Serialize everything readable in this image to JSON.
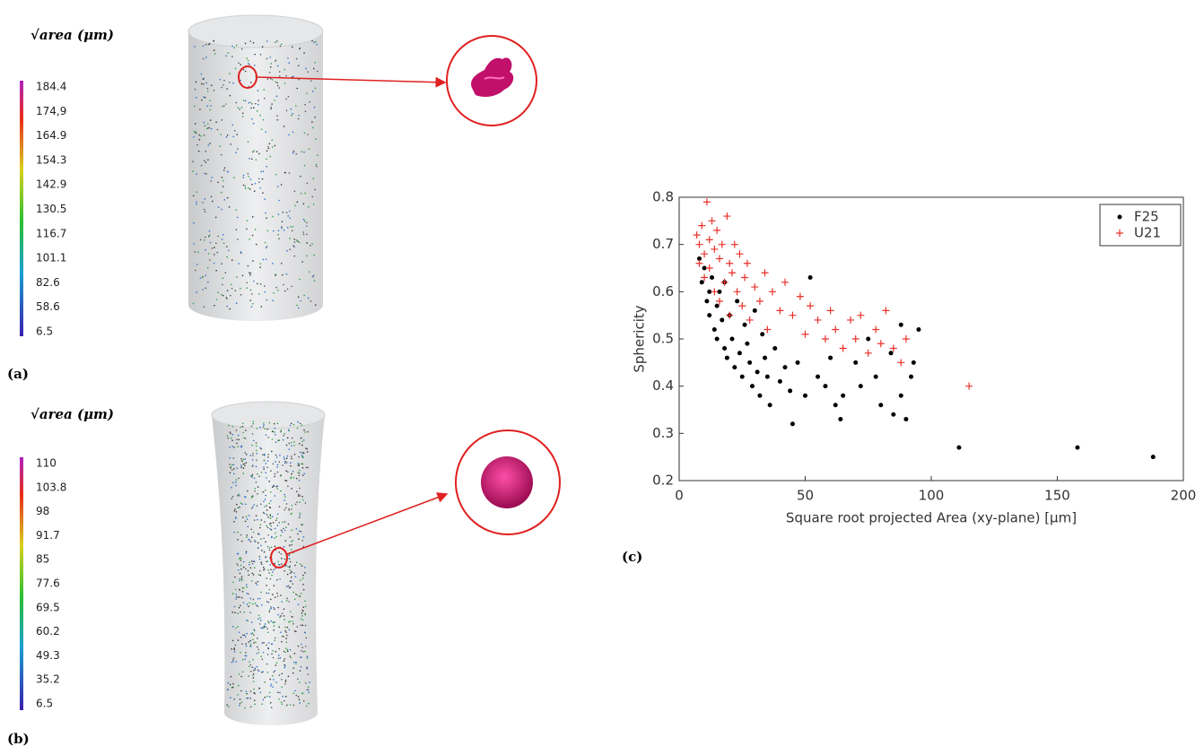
{
  "panels": [
    {
      "label": "(a)",
      "colorbar_title": "√area (μm)",
      "colorbar_labels": [
        "184.4",
        "174,9",
        "164.9",
        "154.3",
        "142.9",
        "130.5",
        "116.7",
        "101.1",
        "82.6",
        "58.6",
        "6.5"
      ]
    },
    {
      "label": "(b)",
      "colorbar_title": "√area (μm)",
      "colorbar_labels": [
        "110",
        "103.8",
        "98",
        "91.7",
        "85",
        "77.6",
        "69.5",
        "60.2",
        "49.3",
        "35.2",
        "6.5"
      ]
    }
  ],
  "chart_data": {
    "type": "scatter",
    "panel_label": "(c)",
    "xlabel": "Square root projected Area (xy-plane) [μm]",
    "ylabel": "Sphericity",
    "xlim": [
      0,
      200
    ],
    "xticks": [
      0,
      50,
      100,
      150,
      200
    ],
    "ylim": [
      0.2,
      0.8
    ],
    "yticks": [
      0.2,
      0.3,
      0.4,
      0.5,
      0.6,
      0.7,
      0.8
    ],
    "legend": "northeast",
    "series": [
      {
        "name": "F25",
        "color": "#000000",
        "marker": "dot",
        "x": [
          8,
          9,
          10,
          11,
          12,
          12,
          13,
          14,
          15,
          15,
          16,
          17,
          18,
          18,
          19,
          20,
          21,
          22,
          23,
          24,
          25,
          26,
          27,
          28,
          29,
          30,
          31,
          32,
          33,
          34,
          35,
          36,
          38,
          40,
          42,
          44,
          45,
          47,
          50,
          52,
          55,
          58,
          60,
          62,
          64,
          65,
          70,
          72,
          75,
          78,
          80,
          84,
          85,
          88,
          88,
          90,
          92,
          93,
          95,
          111,
          158,
          188
        ],
        "y": [
          0.67,
          0.62,
          0.65,
          0.58,
          0.6,
          0.55,
          0.63,
          0.52,
          0.57,
          0.5,
          0.6,
          0.54,
          0.48,
          0.62,
          0.46,
          0.55,
          0.5,
          0.44,
          0.58,
          0.47,
          0.42,
          0.53,
          0.49,
          0.45,
          0.4,
          0.56,
          0.43,
          0.38,
          0.51,
          0.46,
          0.42,
          0.36,
          0.48,
          0.41,
          0.44,
          0.39,
          0.32,
          0.45,
          0.38,
          0.63,
          0.42,
          0.4,
          0.46,
          0.36,
          0.33,
          0.38,
          0.45,
          0.4,
          0.5,
          0.42,
          0.36,
          0.47,
          0.34,
          0.38,
          0.53,
          0.33,
          0.42,
          0.45,
          0.52,
          0.27,
          0.27,
          0.25
        ]
      },
      {
        "name": "U21",
        "color": "#e8302a",
        "marker": "plus",
        "x": [
          7,
          8,
          8,
          9,
          10,
          10,
          11,
          12,
          12,
          13,
          14,
          14,
          15,
          16,
          16,
          17,
          18,
          19,
          20,
          20,
          21,
          22,
          23,
          24,
          25,
          26,
          27,
          28,
          30,
          32,
          34,
          35,
          37,
          40,
          42,
          45,
          48,
          50,
          52,
          55,
          58,
          60,
          62,
          65,
          68,
          70,
          72,
          75,
          78,
          80,
          82,
          85,
          88,
          90,
          115
        ],
        "y": [
          0.72,
          0.7,
          0.66,
          0.74,
          0.68,
          0.63,
          0.79,
          0.71,
          0.65,
          0.75,
          0.69,
          0.6,
          0.73,
          0.67,
          0.58,
          0.7,
          0.62,
          0.76,
          0.66,
          0.55,
          0.64,
          0.7,
          0.6,
          0.68,
          0.57,
          0.63,
          0.66,
          0.54,
          0.61,
          0.58,
          0.64,
          0.52,
          0.6,
          0.56,
          0.62,
          0.55,
          0.59,
          0.51,
          0.57,
          0.54,
          0.5,
          0.56,
          0.52,
          0.48,
          0.54,
          0.5,
          0.55,
          0.47,
          0.52,
          0.49,
          0.56,
          0.48,
          0.45,
          0.5,
          0.4
        ]
      }
    ]
  }
}
